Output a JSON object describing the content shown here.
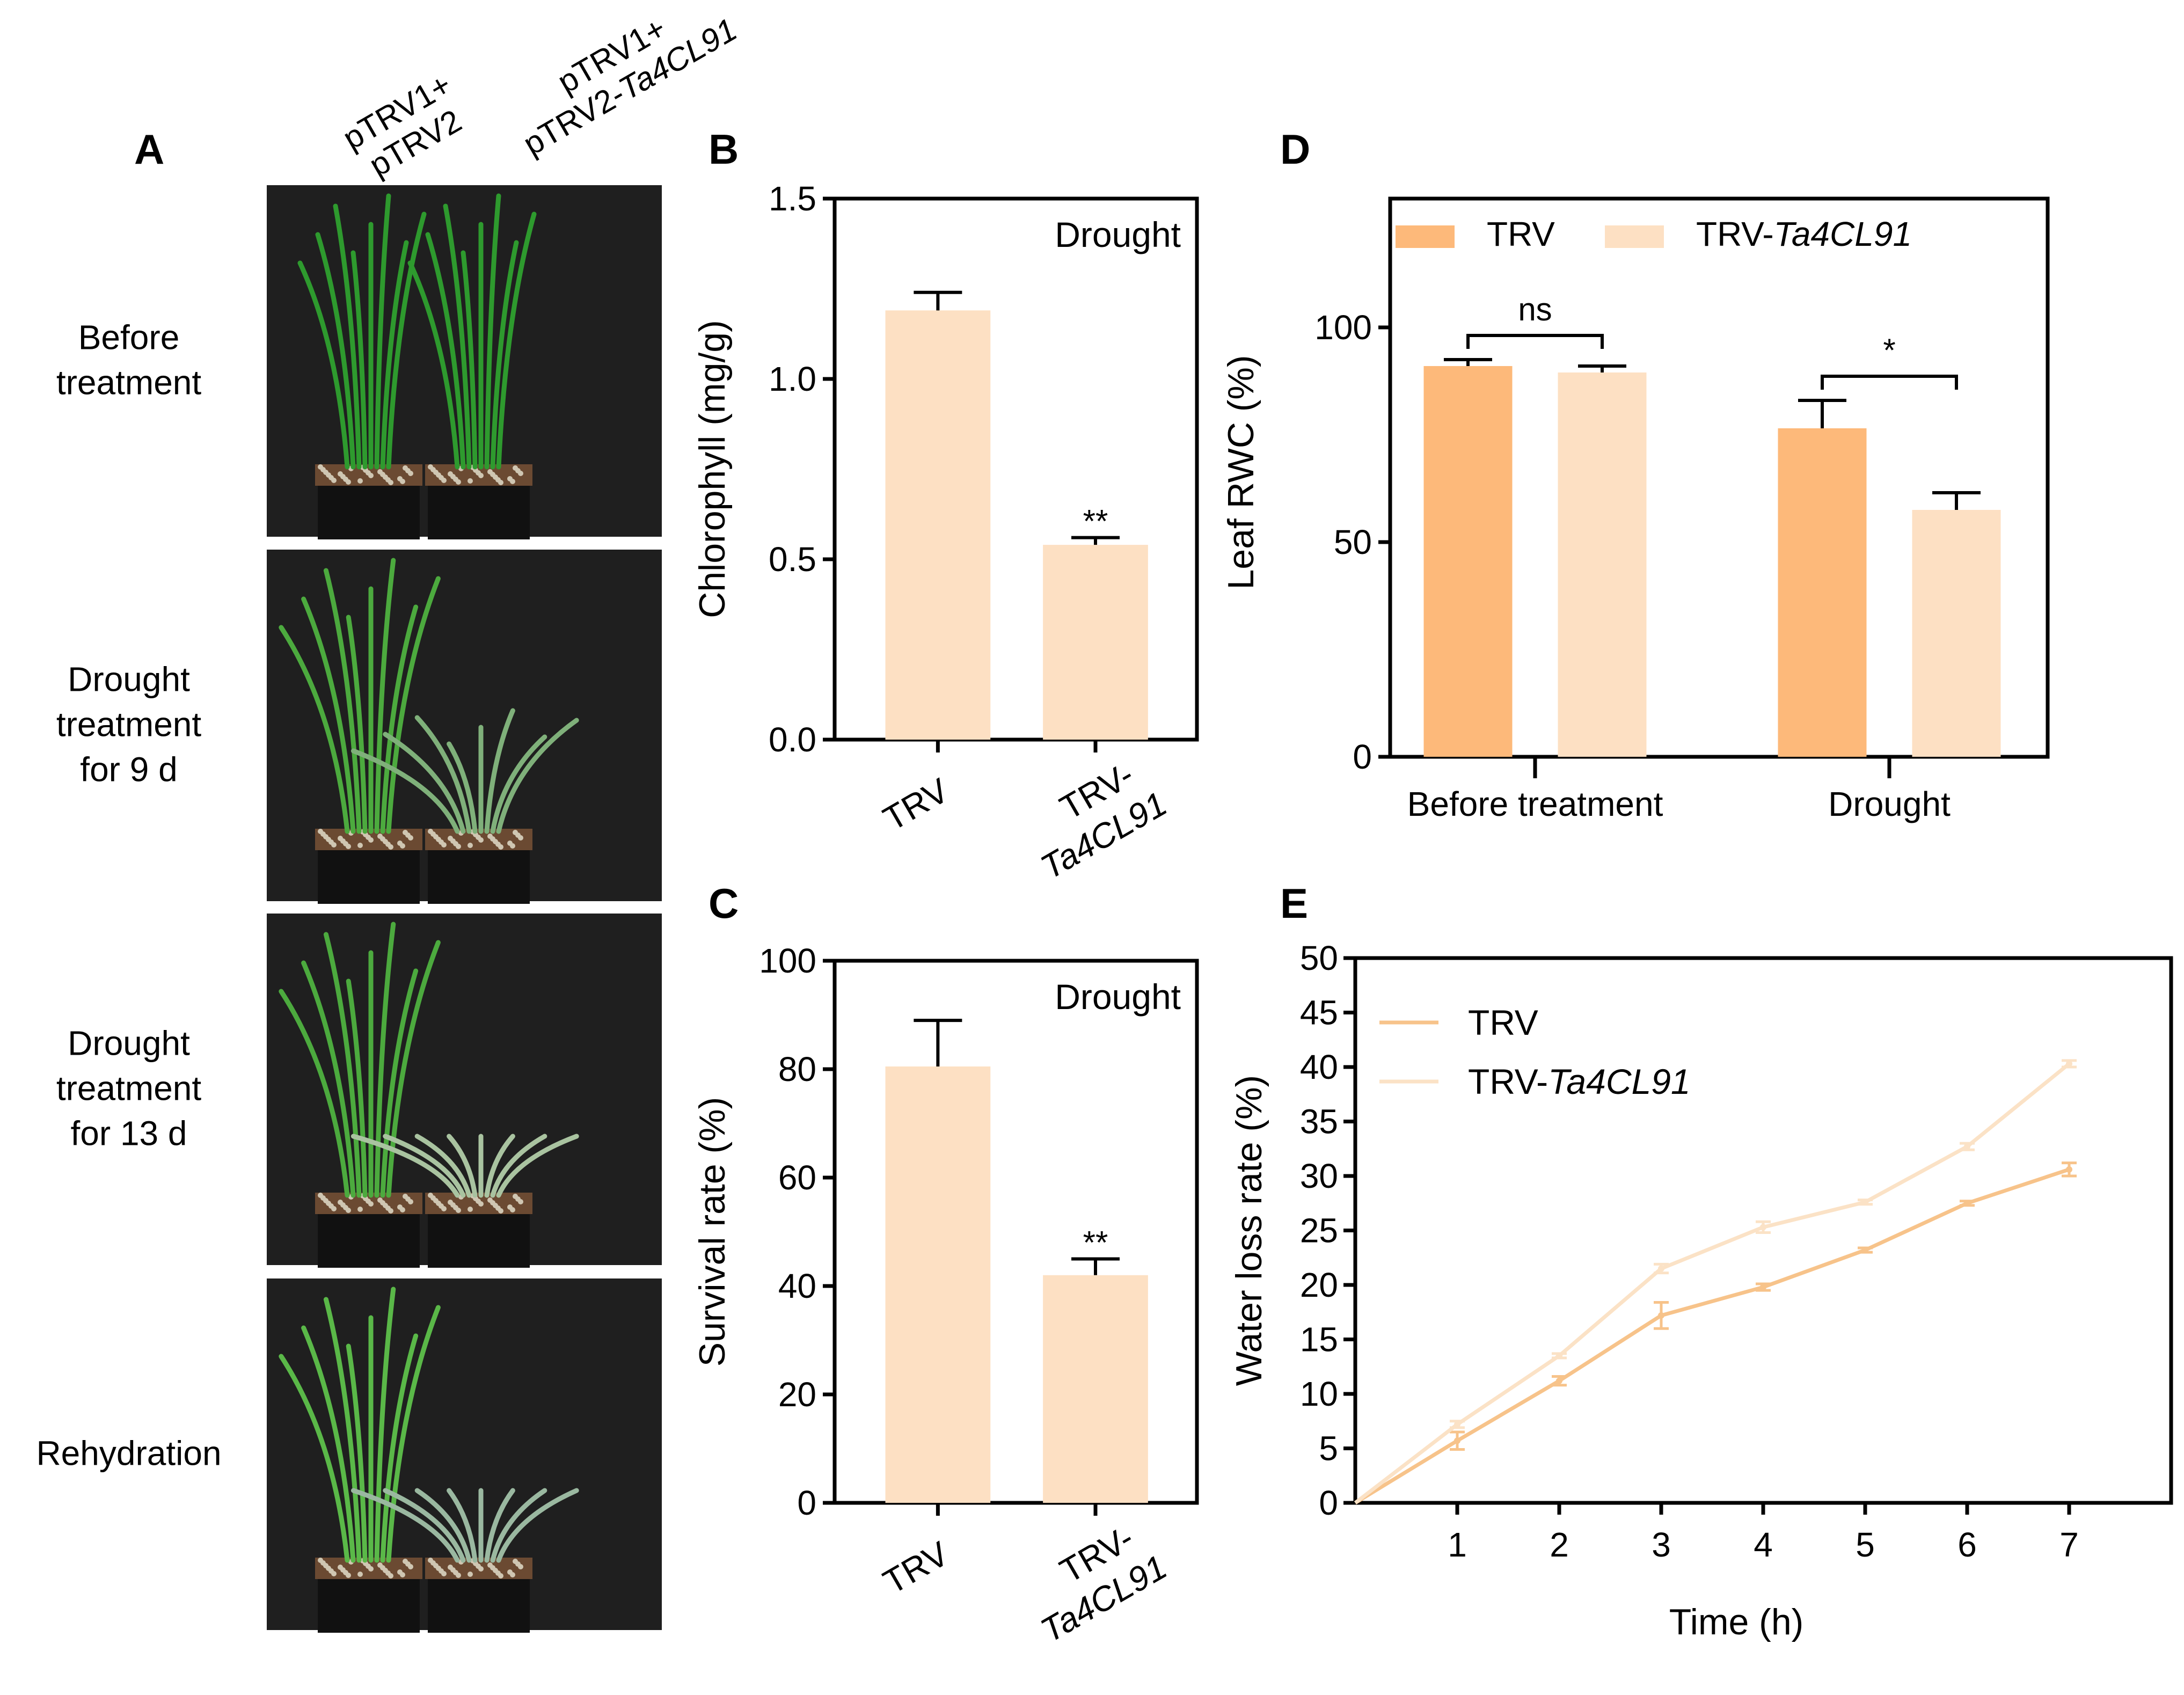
{
  "colors": {
    "trv": "#fdb97a",
    "trv_ta4cl91": "#fde0c3",
    "trv_line": "#f7c38a",
    "trv_ta4cl91_line": "#fbe2c6",
    "photo_bg": "#1f1f1f"
  },
  "panel_a": {
    "letter": "A",
    "columns": [
      {
        "line1": "pTRV1+",
        "line2": "pTRV2",
        "line2_italic": ""
      },
      {
        "line1": "pTRV1+",
        "line2": "pTRV2-",
        "line2_italic": "Ta4CL91"
      }
    ],
    "rows": [
      {
        "lines": [
          "Before",
          "treatment"
        ],
        "severity": 0
      },
      {
        "lines": [
          "Drought",
          "treatment",
          "for 9 d"
        ],
        "severity": 1
      },
      {
        "lines": [
          "Drought",
          "treatment",
          "for 13 d"
        ],
        "severity": 2
      },
      {
        "lines": [
          "Rehydration"
        ],
        "severity": 3
      }
    ]
  },
  "chart_data": [
    {
      "panel": "B",
      "type": "bar",
      "annotation": "Drought",
      "categories": [
        {
          "lines": [
            "TRV"
          ],
          "italic_part": ""
        },
        {
          "lines": [
            "TRV-",
            "Ta4CL91"
          ],
          "italic_part": "Ta4CL91"
        }
      ],
      "values": [
        1.19,
        0.54
      ],
      "errors": [
        0.05,
        0.02
      ],
      "significance": [
        "",
        "**"
      ],
      "xlabel": "",
      "ylabel": "Chlorophyll (mg/g)",
      "ylim": [
        0,
        1.5
      ],
      "yticks": [
        "0.0",
        "0.5",
        "1.0",
        "1.5"
      ],
      "grid": false
    },
    {
      "panel": "C",
      "type": "bar",
      "annotation": "Drought",
      "categories": [
        {
          "lines": [
            "TRV"
          ],
          "italic_part": ""
        },
        {
          "lines": [
            "TRV-",
            "Ta4CL91"
          ],
          "italic_part": "Ta4CL91"
        }
      ],
      "values": [
        80.5,
        42
      ],
      "errors": [
        8.5,
        3
      ],
      "significance": [
        "",
        "**"
      ],
      "xlabel": "",
      "ylabel": "Survival rate (%)",
      "ylim": [
        0,
        100
      ],
      "yticks": [
        "0",
        "20",
        "40",
        "60",
        "80",
        "100"
      ],
      "grid": false
    },
    {
      "panel": "D",
      "type": "bar",
      "categories": [
        "Before treatment",
        "Drought"
      ],
      "series": [
        {
          "name": "TRV",
          "name_italic": "",
          "values": [
            91,
            76.5
          ],
          "errors": [
            1.5,
            6.5
          ]
        },
        {
          "name": "TRV-",
          "name_italic": "Ta4CL91",
          "values": [
            89.5,
            57.5
          ],
          "errors": [
            1.5,
            4
          ]
        }
      ],
      "comparisons": [
        "ns",
        "*"
      ],
      "xlabel": "",
      "ylabel": "Leaf RWC (%)",
      "ylim": [
        0,
        130
      ],
      "yticks": [
        0,
        50,
        100
      ],
      "legend": "top",
      "grid": false
    },
    {
      "panel": "E",
      "type": "line",
      "x": [
        0,
        1,
        2,
        3,
        4,
        5,
        6,
        7
      ],
      "xticks": [
        1,
        2,
        3,
        4,
        5,
        6,
        7
      ],
      "series": [
        {
          "name": "TRV",
          "name_italic": "",
          "values": [
            0,
            5.7,
            11.2,
            17.2,
            19.8,
            23.2,
            27.5,
            30.6
          ],
          "errors": [
            0,
            0.8,
            0.4,
            1.2,
            0.3,
            0.2,
            0.2,
            0.6
          ]
        },
        {
          "name": "TRV-",
          "name_italic": "Ta4CL91",
          "values": [
            0,
            7.2,
            13.5,
            21.5,
            25.3,
            27.6,
            32.7,
            40.3
          ],
          "errors": [
            0,
            0.3,
            0.2,
            0.4,
            0.5,
            0.2,
            0.3,
            0.3
          ]
        }
      ],
      "xlabel": "Time (h)",
      "ylabel": "Water loss rate (%)",
      "xlim": [
        0,
        8
      ],
      "ylim": [
        0,
        50
      ],
      "yticks": [
        0,
        5,
        10,
        15,
        20,
        25,
        30,
        35,
        40,
        45,
        50
      ],
      "legend": "top-left",
      "grid": false
    }
  ]
}
